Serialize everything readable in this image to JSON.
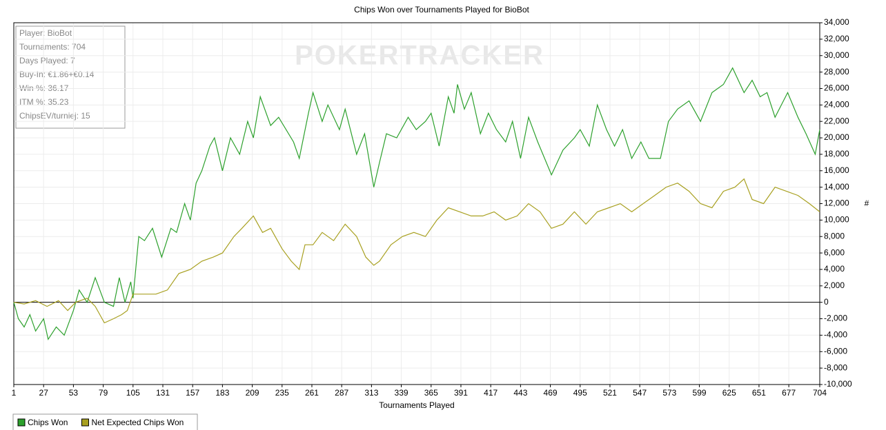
{
  "chart_data": {
    "type": "line",
    "title": "Chips Won over Tournaments Played for BioBot",
    "watermark": "POKERTRACKER",
    "info_box": [
      "Player: BioBot",
      "Tournaments: 704",
      "Days Played: 7",
      "Buy-In: €1.86+€0.14",
      "Win %: 36.17",
      "ITM %: 35.23",
      "ChipsEV/turniej: 15"
    ],
    "x_label": "Tournaments Played",
    "y_label": "#",
    "xlim": [
      1,
      704
    ],
    "xticks": [
      1,
      27,
      53,
      79,
      105,
      131,
      157,
      183,
      209,
      235,
      261,
      287,
      313,
      339,
      365,
      391,
      417,
      443,
      469,
      495,
      521,
      547,
      573,
      599,
      625,
      651,
      677,
      704
    ],
    "ylim": [
      -10000,
      34000
    ],
    "yticks": [
      {
        "value": -10000,
        "label": "-10,000"
      },
      {
        "value": -8000,
        "label": "-8,000"
      },
      {
        "value": -6000,
        "label": "-6,000"
      },
      {
        "value": -4000,
        "label": "-4,000"
      },
      {
        "value": -2000,
        "label": "-2,000"
      },
      0,
      {
        "value": 2000,
        "label": "2,000"
      },
      {
        "value": 4000,
        "label": "4,000"
      },
      {
        "value": 6000,
        "label": "6,000"
      },
      {
        "value": 8000,
        "label": "8,000"
      },
      {
        "value": 10000,
        "label": "10,000"
      },
      {
        "value": 12000,
        "label": "12,000"
      },
      {
        "value": 14000,
        "label": "14,000"
      },
      {
        "value": 16000,
        "label": "16,000"
      },
      {
        "value": 18000,
        "label": "18,000"
      },
      {
        "value": 20000,
        "label": "20,000"
      },
      {
        "value": 22000,
        "label": "22,000"
      },
      {
        "value": 24000,
        "label": "24,000"
      },
      {
        "value": 26000,
        "label": "26,000"
      },
      {
        "value": 28000,
        "label": "28,000"
      },
      {
        "value": 30000,
        "label": "30,000"
      },
      {
        "value": 32000,
        "label": "32,000"
      },
      {
        "value": 34000,
        "label": "34,000"
      }
    ],
    "grid": true,
    "legend": "bottom-left",
    "series": [
      {
        "name": "Chips Won",
        "color": "#2ca02c",
        "x": [
          1,
          5,
          10,
          15,
          20,
          27,
          31,
          38,
          45,
          53,
          58,
          65,
          72,
          80,
          88,
          93,
          98,
          103,
          105,
          110,
          115,
          122,
          130,
          138,
          143,
          150,
          155,
          160,
          165,
          172,
          176,
          183,
          190,
          198,
          205,
          210,
          216,
          225,
          232,
          245,
          250,
          258,
          262,
          270,
          275,
          285,
          290,
          300,
          307,
          315,
          320,
          326,
          335,
          345,
          352,
          360,
          365,
          372,
          380,
          385,
          388,
          394,
          400,
          408,
          415,
          422,
          430,
          436,
          443,
          450,
          458,
          470,
          480,
          490,
          495,
          503,
          510,
          518,
          525,
          532,
          540,
          548,
          555,
          565,
          572,
          580,
          590,
          600,
          610,
          620,
          628,
          638,
          645,
          652,
          658,
          665,
          676,
          685,
          692,
          700,
          704
        ],
        "values": [
          0,
          -2000,
          -3000,
          -1500,
          -3500,
          -2000,
          -4500,
          -3000,
          -4000,
          -1000,
          1500,
          0,
          3000,
          0,
          -500,
          3000,
          0,
          2500,
          500,
          8000,
          7500,
          9000,
          5500,
          9000,
          8500,
          12000,
          10000,
          14500,
          16000,
          19000,
          20000,
          16000,
          20000,
          18000,
          22000,
          20000,
          25000,
          21500,
          22500,
          19500,
          17500,
          23000,
          25500,
          22000,
          24000,
          21000,
          23500,
          18000,
          20500,
          14000,
          17000,
          20500,
          20000,
          22500,
          21000,
          22000,
          23000,
          19000,
          25000,
          23000,
          26500,
          23500,
          25500,
          20500,
          23000,
          21000,
          19500,
          22000,
          17500,
          22500,
          19500,
          15500,
          18500,
          20000,
          21000,
          19000,
          24000,
          21000,
          19000,
          21000,
          17500,
          19500,
          17500,
          17500,
          22000,
          23500,
          24500,
          22000,
          25500,
          26500,
          28500,
          25500,
          27000,
          25000,
          25500,
          22500,
          25500,
          22500,
          20500,
          18000,
          21000
        ]
      },
      {
        "name": "Net Expected Chips Won",
        "color": "#a8a020",
        "x": [
          1,
          10,
          20,
          30,
          40,
          48,
          55,
          65,
          72,
          80,
          88,
          95,
          100,
          105,
          115,
          125,
          135,
          145,
          155,
          165,
          175,
          183,
          193,
          200,
          210,
          218,
          225,
          235,
          243,
          250,
          255,
          262,
          270,
          280,
          290,
          300,
          308,
          315,
          320,
          330,
          340,
          350,
          360,
          370,
          380,
          390,
          400,
          410,
          420,
          430,
          440,
          450,
          460,
          470,
          480,
          490,
          500,
          510,
          520,
          530,
          540,
          550,
          560,
          570,
          580,
          590,
          600,
          610,
          620,
          630,
          638,
          645,
          655,
          665,
          675,
          685,
          695,
          704
        ],
        "values": [
          0,
          -200,
          200,
          -500,
          200,
          -1000,
          0,
          500,
          -500,
          -2500,
          -2000,
          -1500,
          -1000,
          1000,
          1000,
          1000,
          1500,
          3500,
          4000,
          5000,
          5500,
          6000,
          8000,
          9000,
          10500,
          8500,
          9000,
          6500,
          5000,
          4000,
          7000,
          7000,
          8500,
          7500,
          9500,
          8000,
          5500,
          4500,
          5000,
          7000,
          8000,
          8500,
          8000,
          10000,
          11500,
          11000,
          10500,
          10500,
          11000,
          10000,
          10500,
          12000,
          11000,
          9000,
          9500,
          11000,
          9500,
          11000,
          11500,
          12000,
          11000,
          12000,
          13000,
          14000,
          14500,
          13500,
          12000,
          11500,
          13500,
          14000,
          15000,
          12500,
          12000,
          14000,
          13500,
          13000,
          12000,
          11000
        ]
      }
    ]
  }
}
